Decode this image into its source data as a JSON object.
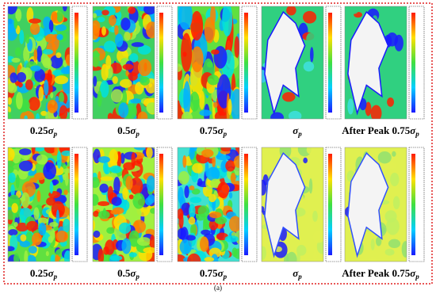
{
  "figure": {
    "caption": "(a)",
    "rows": [
      {
        "panels": [
          {
            "label": {
              "text": "0.25",
              "symbol": "σ",
              "sub": "p"
            }
          },
          {
            "label": {
              "text": "0.5",
              "symbol": "σ",
              "sub": "p"
            }
          },
          {
            "label": {
              "text": "0.75",
              "symbol": "σ",
              "sub": "p"
            }
          },
          {
            "label": {
              "text": "",
              "symbol": "σ",
              "sub": "p"
            }
          },
          {
            "label": {
              "text": "After Peak 0.75",
              "symbol": "σ",
              "sub": "p"
            }
          }
        ]
      },
      {
        "panels": [
          {
            "label": {
              "text": "0.25",
              "symbol": "σ",
              "sub": "p"
            }
          },
          {
            "label": {
              "text": "0.5",
              "symbol": "σ",
              "sub": "p"
            }
          },
          {
            "label": {
              "text": "0.75",
              "symbol": "σ",
              "sub": "p"
            }
          },
          {
            "label": {
              "text": "",
              "symbol": "σ",
              "sub": "p"
            }
          },
          {
            "label": {
              "text": "After Peak 0.75",
              "symbol": "σ",
              "sub": "p"
            }
          }
        ]
      }
    ]
  }
}
